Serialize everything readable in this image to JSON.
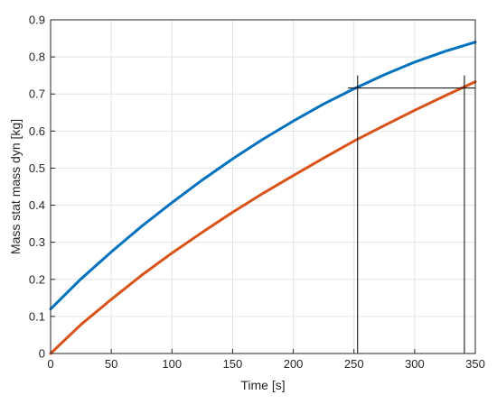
{
  "chart_data": {
    "type": "line",
    "xlabel": "Time [s]",
    "ylabel": "Mass stat mass dyn [kg]",
    "xlim": [
      0,
      350
    ],
    "ylim": [
      0,
      0.9
    ],
    "x_ticks": [
      0,
      50,
      100,
      150,
      200,
      250,
      300,
      350
    ],
    "y_ticks": [
      0,
      0.1,
      0.2,
      0.3,
      0.4,
      0.5,
      0.6,
      0.7,
      0.8,
      0.9
    ],
    "x_tick_labels": [
      "0",
      "50",
      "100",
      "150",
      "200",
      "250",
      "300",
      "350"
    ],
    "y_tick_labels": [
      "0",
      "0.1",
      "0.2",
      "0.3",
      "0.4",
      "0.5",
      "0.6",
      "0.7",
      "0.8",
      "0.9"
    ],
    "grid": true,
    "series": [
      {
        "color": "#0072BD",
        "x": [
          0,
          25,
          50,
          75,
          100,
          125,
          150,
          175,
          200,
          225,
          250,
          275,
          300,
          325,
          350
        ],
        "y": [
          0.12,
          0.201,
          0.274,
          0.343,
          0.407,
          0.468,
          0.525,
          0.578,
          0.627,
          0.673,
          0.714,
          0.752,
          0.786,
          0.815,
          0.84
        ]
      },
      {
        "color": "#D95319",
        "x": [
          0,
          25,
          50,
          75,
          100,
          125,
          150,
          175,
          200,
          225,
          250,
          275,
          300,
          325,
          350
        ],
        "y": [
          0.0,
          0.078,
          0.146,
          0.211,
          0.271,
          0.327,
          0.381,
          0.432,
          0.48,
          0.527,
          0.573,
          0.615,
          0.656,
          0.695,
          0.733
        ]
      }
    ],
    "annotations": {
      "color": "#000000",
      "vertical_lines": [
        {
          "x": 253,
          "y": [
            0,
            0.75
          ]
        },
        {
          "x": 341,
          "y": [
            0,
            0.75
          ]
        }
      ],
      "horizontal_lines": [
        {
          "y": 0.716,
          "x": [
            245,
            350
          ]
        }
      ]
    }
  }
}
